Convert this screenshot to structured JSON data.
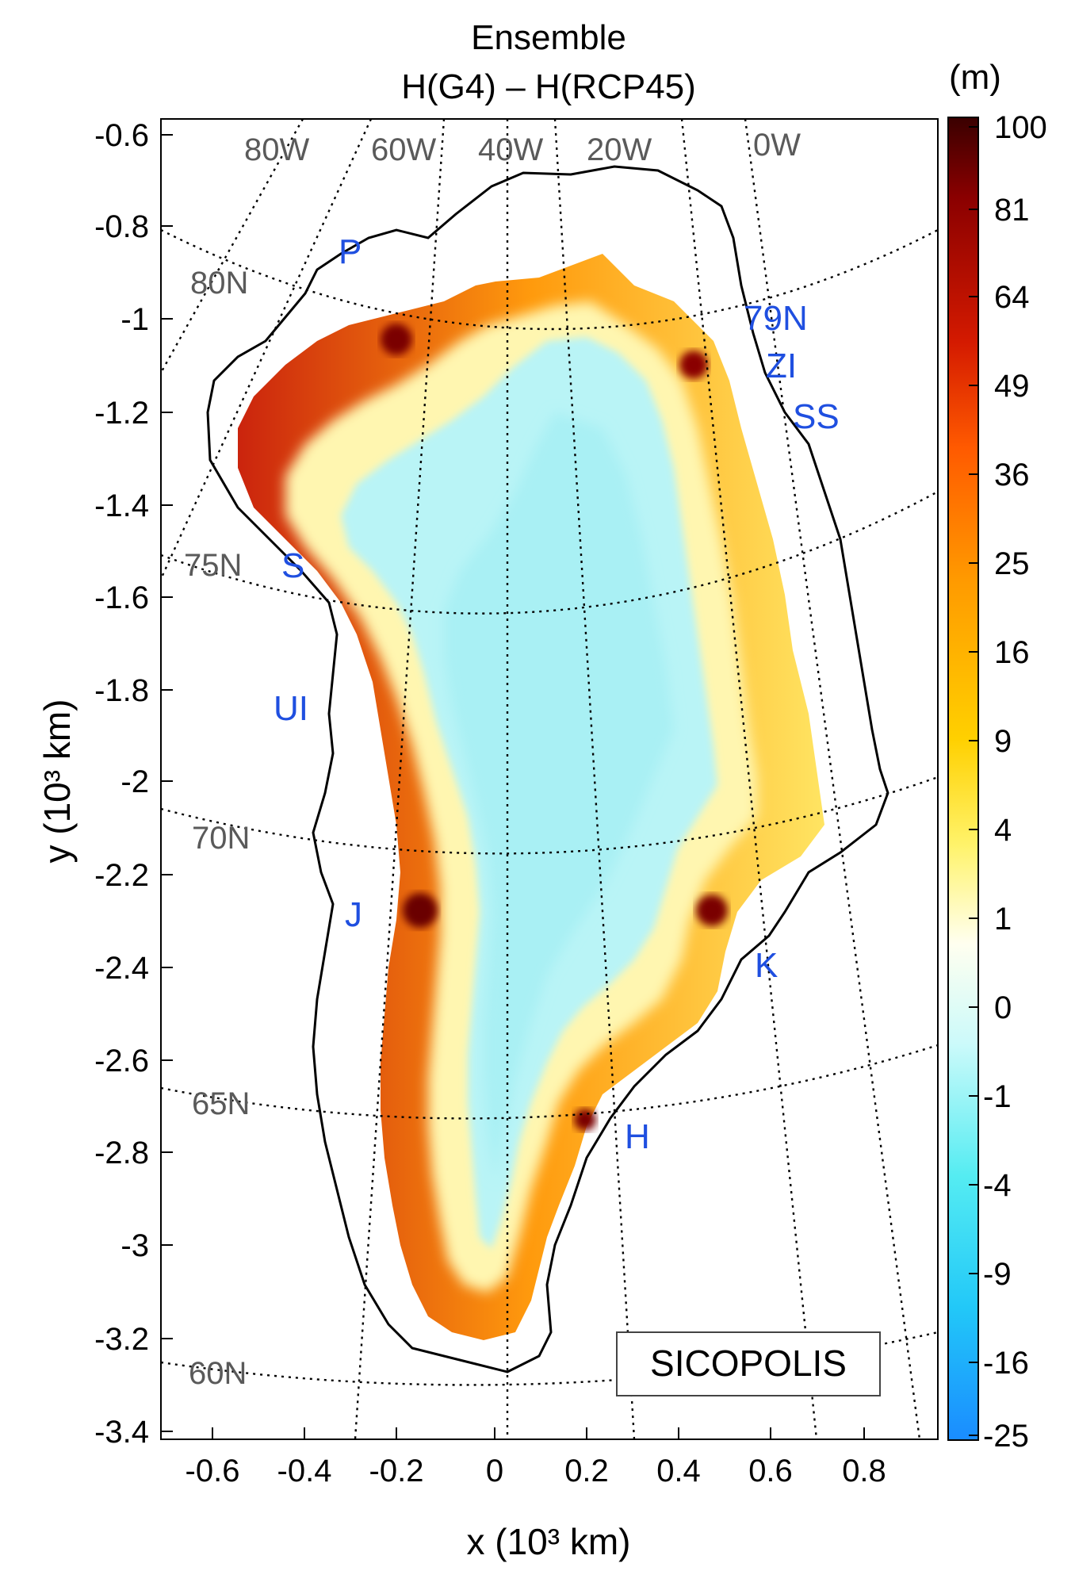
{
  "figure": {
    "title_line1": "Ensemble",
    "title_line2": "H(G4) – H(RCP45)",
    "model_label": "SICOPOLIS",
    "xlabel": "x (10³ km)",
    "ylabel": "y (10³ km)",
    "xlim": [
      -0.75,
      0.96
    ],
    "ylim": [
      -3.45,
      -0.56
    ]
  },
  "x_ticks": [
    "-0.6",
    "-0.4",
    "-0.2",
    "0",
    "0.2",
    "0.4",
    "0.6",
    "0.8"
  ],
  "y_ticks": [
    "-0.6",
    "-0.8",
    "-1",
    "-1.2",
    "-1.4",
    "-1.6",
    "-1.8",
    "-2",
    "-2.2",
    "-2.4",
    "-2.6",
    "-2.8",
    "-3",
    "-3.2",
    "-3.4"
  ],
  "colorbar": {
    "unit": "(m)",
    "ticks": [
      "100",
      "81",
      "64",
      "49",
      "36",
      "25",
      "16",
      "9",
      "4",
      "1",
      "0",
      "-1",
      "-4",
      "-9",
      "-16",
      "-25"
    ],
    "colors": [
      "#3a0000",
      "#8a0000",
      "#d41a00",
      "#ff5a00",
      "#ff9a00",
      "#ffd000",
      "#fff36a",
      "#fffff0",
      "#aaf6f8",
      "#40e6f0",
      "#1aa6ff"
    ]
  },
  "graticule": {
    "meridians": [
      "80W",
      "60W",
      "40W",
      "20W",
      "0W"
    ],
    "parallels": [
      "80N",
      "75N",
      "70N",
      "65N",
      "60N"
    ]
  },
  "sites": [
    "P",
    "79N",
    "ZI",
    "SS",
    "S",
    "UI",
    "J",
    "K",
    "H"
  ]
}
